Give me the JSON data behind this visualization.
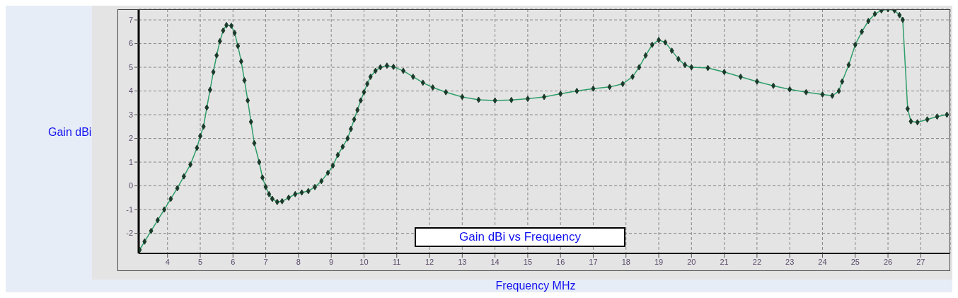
{
  "chart_data": {
    "type": "line",
    "title": "Gain dBi vs Frequency",
    "xlabel": "Frequency MHz",
    "ylabel": "Gain dBi",
    "xlim": [
      3.12,
      27.9
    ],
    "xticks": [
      4,
      5,
      6,
      7,
      8,
      9,
      10,
      11,
      12,
      13,
      14,
      15,
      16,
      17,
      18,
      19,
      20,
      21,
      22,
      23,
      24,
      25,
      26,
      27
    ],
    "ylim": [
      -2.85,
      7.45
    ],
    "yticks": [
      -2,
      -1,
      0,
      1,
      2,
      3,
      4,
      5,
      6,
      7
    ],
    "grid": true,
    "marker": "diamond",
    "line_style": "solid",
    "series": [
      {
        "color": "#2e9e6a",
        "x": [
          3.15,
          3.3,
          3.5,
          3.7,
          3.9,
          4.1,
          4.3,
          4.5,
          4.7,
          4.9,
          5.0,
          5.1,
          5.2,
          5.3,
          5.4,
          5.5,
          5.6,
          5.7,
          5.8,
          5.95,
          6.05,
          6.15,
          6.25,
          6.35,
          6.45,
          6.55,
          6.65,
          6.8,
          6.9,
          7.0,
          7.1,
          7.2,
          7.35,
          7.5,
          7.7,
          7.9,
          8.1,
          8.3,
          8.5,
          8.7,
          8.9,
          9.05,
          9.2,
          9.35,
          9.5,
          9.6,
          9.7,
          9.8,
          9.9,
          10.0,
          10.1,
          10.2,
          10.35,
          10.5,
          10.7,
          10.9,
          11.2,
          11.5,
          11.8,
          12.1,
          12.5,
          13.0,
          13.5,
          14.0,
          14.5,
          15.0,
          15.5,
          16.0,
          16.5,
          17.0,
          17.5,
          17.9,
          18.2,
          18.4,
          18.6,
          18.8,
          19.0,
          19.2,
          19.4,
          19.6,
          19.8,
          20.0,
          20.5,
          21.0,
          21.5,
          22.0,
          22.5,
          23.0,
          23.5,
          24.0,
          24.3,
          24.5,
          24.6,
          24.8,
          25.0,
          25.2,
          25.4,
          25.6,
          25.8,
          26.0,
          26.2,
          26.35,
          26.45,
          26.6,
          26.7,
          26.9,
          27.2,
          27.5,
          27.8
        ],
        "values": [
          -2.7,
          -2.35,
          -1.9,
          -1.45,
          -1.0,
          -0.55,
          -0.1,
          0.4,
          0.9,
          1.6,
          2.1,
          2.5,
          3.3,
          4.05,
          4.8,
          5.5,
          6.1,
          6.55,
          6.78,
          6.75,
          6.45,
          5.9,
          5.25,
          4.45,
          3.6,
          2.7,
          1.8,
          1.0,
          0.35,
          -0.05,
          -0.35,
          -0.55,
          -0.68,
          -0.65,
          -0.5,
          -0.35,
          -0.28,
          -0.22,
          -0.05,
          0.2,
          0.55,
          0.85,
          1.3,
          1.65,
          2.0,
          2.4,
          2.8,
          3.2,
          3.6,
          3.95,
          4.3,
          4.6,
          4.85,
          5.0,
          5.07,
          5.02,
          4.85,
          4.6,
          4.35,
          4.15,
          3.95,
          3.75,
          3.63,
          3.6,
          3.62,
          3.67,
          3.75,
          3.88,
          4.0,
          4.1,
          4.17,
          4.3,
          4.6,
          5.0,
          5.5,
          5.95,
          6.15,
          6.05,
          5.7,
          5.35,
          5.1,
          5.0,
          4.97,
          4.8,
          4.6,
          4.4,
          4.22,
          4.07,
          3.95,
          3.85,
          3.8,
          4.0,
          4.4,
          5.1,
          5.95,
          6.5,
          6.95,
          7.25,
          7.4,
          7.45,
          7.4,
          7.2,
          7.0,
          3.25,
          2.72,
          2.68,
          2.8,
          2.92,
          3.0
        ]
      }
    ]
  }
}
